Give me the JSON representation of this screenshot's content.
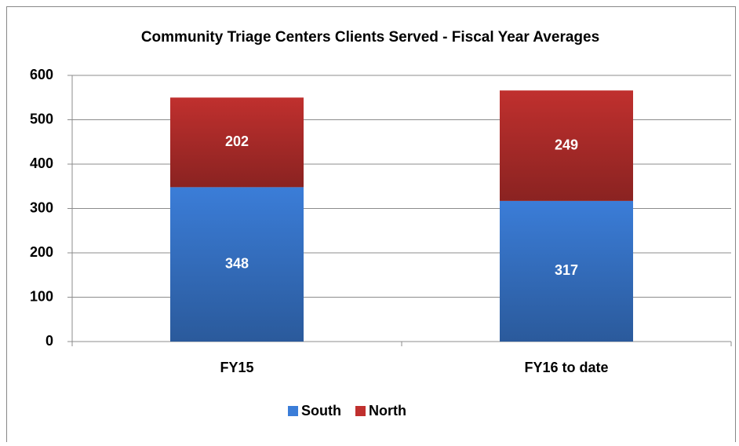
{
  "chart_data": {
    "type": "stacked_bar",
    "title": "Community Triage Centers Clients Served - Fiscal Year Averages",
    "categories": [
      "FY15",
      "FY16 to date"
    ],
    "series": [
      {
        "name": "South",
        "color": "#3b7dd8",
        "values": [
          348,
          317
        ]
      },
      {
        "name": "North",
        "color": "#c0302e",
        "values": [
          202,
          249
        ]
      }
    ],
    "ylim": [
      0,
      600
    ],
    "yticks": [
      0,
      100,
      200,
      300,
      400,
      500,
      600
    ],
    "grid": true,
    "legend": "bottom"
  }
}
